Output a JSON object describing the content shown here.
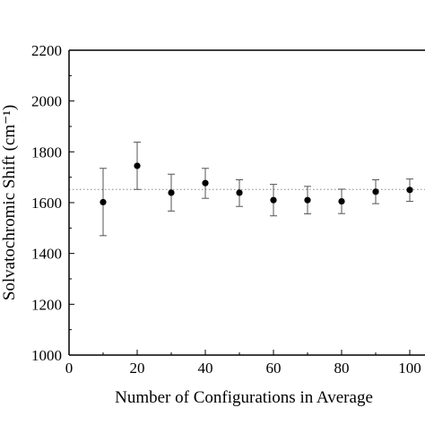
{
  "chart_data": {
    "type": "scatter",
    "xlabel": "Number of Configurations in Average",
    "ylabel": "Solvatochromic Shift (cm⁻¹)",
    "xlim": [
      0,
      110
    ],
    "ylim": [
      1000,
      2200
    ],
    "x_ticks": [
      "0",
      "20",
      "40",
      "60",
      "80",
      "100"
    ],
    "y_ticks": [
      "1000",
      "1200",
      "1400",
      "1600",
      "1800",
      "2000",
      "2200"
    ],
    "series": [
      {
        "x": [
          10,
          20,
          30,
          40,
          50,
          60,
          70,
          80,
          90,
          100
        ],
        "y": [
          1602,
          1745,
          1639,
          1677,
          1639,
          1610,
          1610,
          1605,
          1643,
          1650
        ],
        "y_lower": [
          1470,
          1652,
          1567,
          1617,
          1585,
          1548,
          1556,
          1557,
          1596,
          1605
        ],
        "y_upper": [
          1735,
          1838,
          1712,
          1735,
          1690,
          1672,
          1664,
          1653,
          1690,
          1693
        ]
      }
    ],
    "reference_line": {
      "y": 1652,
      "style": "dotted"
    },
    "grid": false,
    "legend": "none",
    "colors": {
      "marker": "#000000",
      "error_bar": "#555555",
      "reference_line": "#888888",
      "axis": "#000000"
    }
  }
}
